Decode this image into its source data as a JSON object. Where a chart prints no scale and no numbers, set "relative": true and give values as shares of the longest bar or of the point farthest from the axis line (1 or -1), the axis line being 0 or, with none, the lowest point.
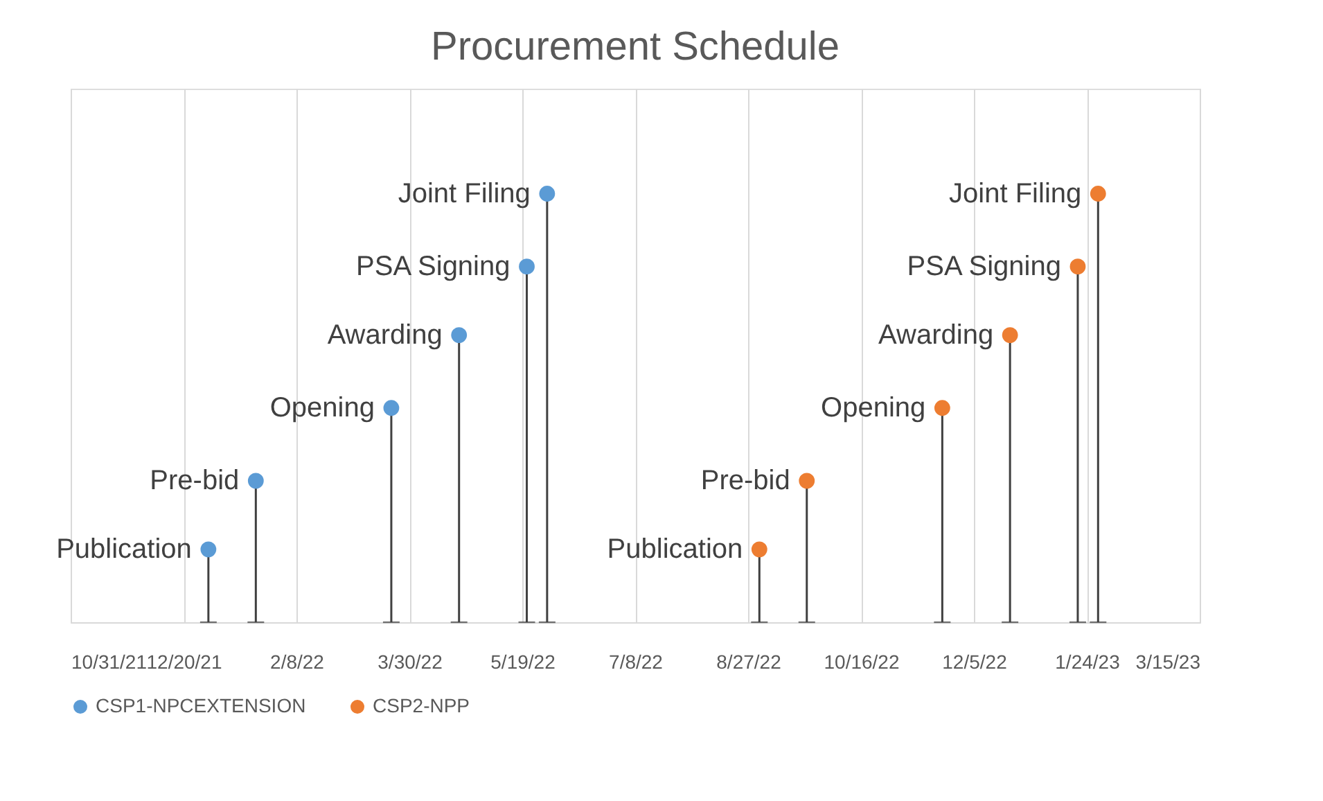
{
  "chart_data": {
    "type": "lollipop",
    "title": "Procurement Schedule",
    "relative": true,
    "grid": "x",
    "legend": "bottom",
    "marker": "circle",
    "xlim": [
      "2021-10-31",
      "2023-03-15"
    ],
    "xticks": [
      {
        "value": "2021-10-31",
        "label": "10/31/21"
      },
      {
        "value": "2021-12-20",
        "label": "12/20/21"
      },
      {
        "value": "2022-02-08",
        "label": "2/8/22"
      },
      {
        "value": "2022-03-30",
        "label": "3/30/22"
      },
      {
        "value": "2022-05-19",
        "label": "5/19/22"
      },
      {
        "value": "2022-07-08",
        "label": "7/8/22"
      },
      {
        "value": "2022-08-27",
        "label": "8/27/22"
      },
      {
        "value": "2022-10-16",
        "label": "10/16/22"
      },
      {
        "value": "2022-12-05",
        "label": "12/5/22"
      },
      {
        "value": "2023-01-24",
        "label": "1/24/23"
      },
      {
        "value": "2023-03-15",
        "label": "3/15/23"
      }
    ],
    "series": [
      {
        "name": "CSP1-NPCEXTENSION",
        "color": "#5b9bd5",
        "x": [
          "2021-12-31",
          "2022-01-21",
          "2022-03-22",
          "2022-04-21",
          "2022-05-21",
          "2022-05-30"
        ],
        "values": [
          0.17,
          0.33,
          0.5,
          0.67,
          0.83,
          1
        ]
      },
      {
        "name": "CSP2-NPP",
        "color": "#ed7d31",
        "x": [
          "2022-09-01",
          "2022-09-22",
          "2022-11-21",
          "2022-12-21",
          "2023-01-20",
          "2023-01-29"
        ],
        "values": [
          0.17,
          0.33,
          0.5,
          0.67,
          0.83,
          1
        ]
      }
    ],
    "annotations": [
      {
        "text": "Publication",
        "x": "2021-12-31",
        "y": 0.17
      },
      {
        "text": "Pre-bid",
        "x": "2022-01-21",
        "y": 0.33
      },
      {
        "text": "Opening",
        "x": "2022-03-22",
        "y": 0.5
      },
      {
        "text": "Awarding",
        "x": "2022-04-21",
        "y": 0.67
      },
      {
        "text": "PSA Signing",
        "x": "2022-05-21",
        "y": 0.83
      },
      {
        "text": "Joint Filing",
        "x": "2022-05-30",
        "y": 1
      },
      {
        "text": "Publication",
        "x": "2022-09-01",
        "y": 0.17
      },
      {
        "text": "Pre-bid",
        "x": "2022-09-22",
        "y": 0.33
      },
      {
        "text": "Opening",
        "x": "2022-11-21",
        "y": 0.5
      },
      {
        "text": "Awarding",
        "x": "2022-12-21",
        "y": 0.67
      },
      {
        "text": "PSA Signing",
        "x": "2023-01-20",
        "y": 0.83
      },
      {
        "text": "Joint Filing",
        "x": "2023-01-29",
        "y": 1
      }
    ]
  }
}
